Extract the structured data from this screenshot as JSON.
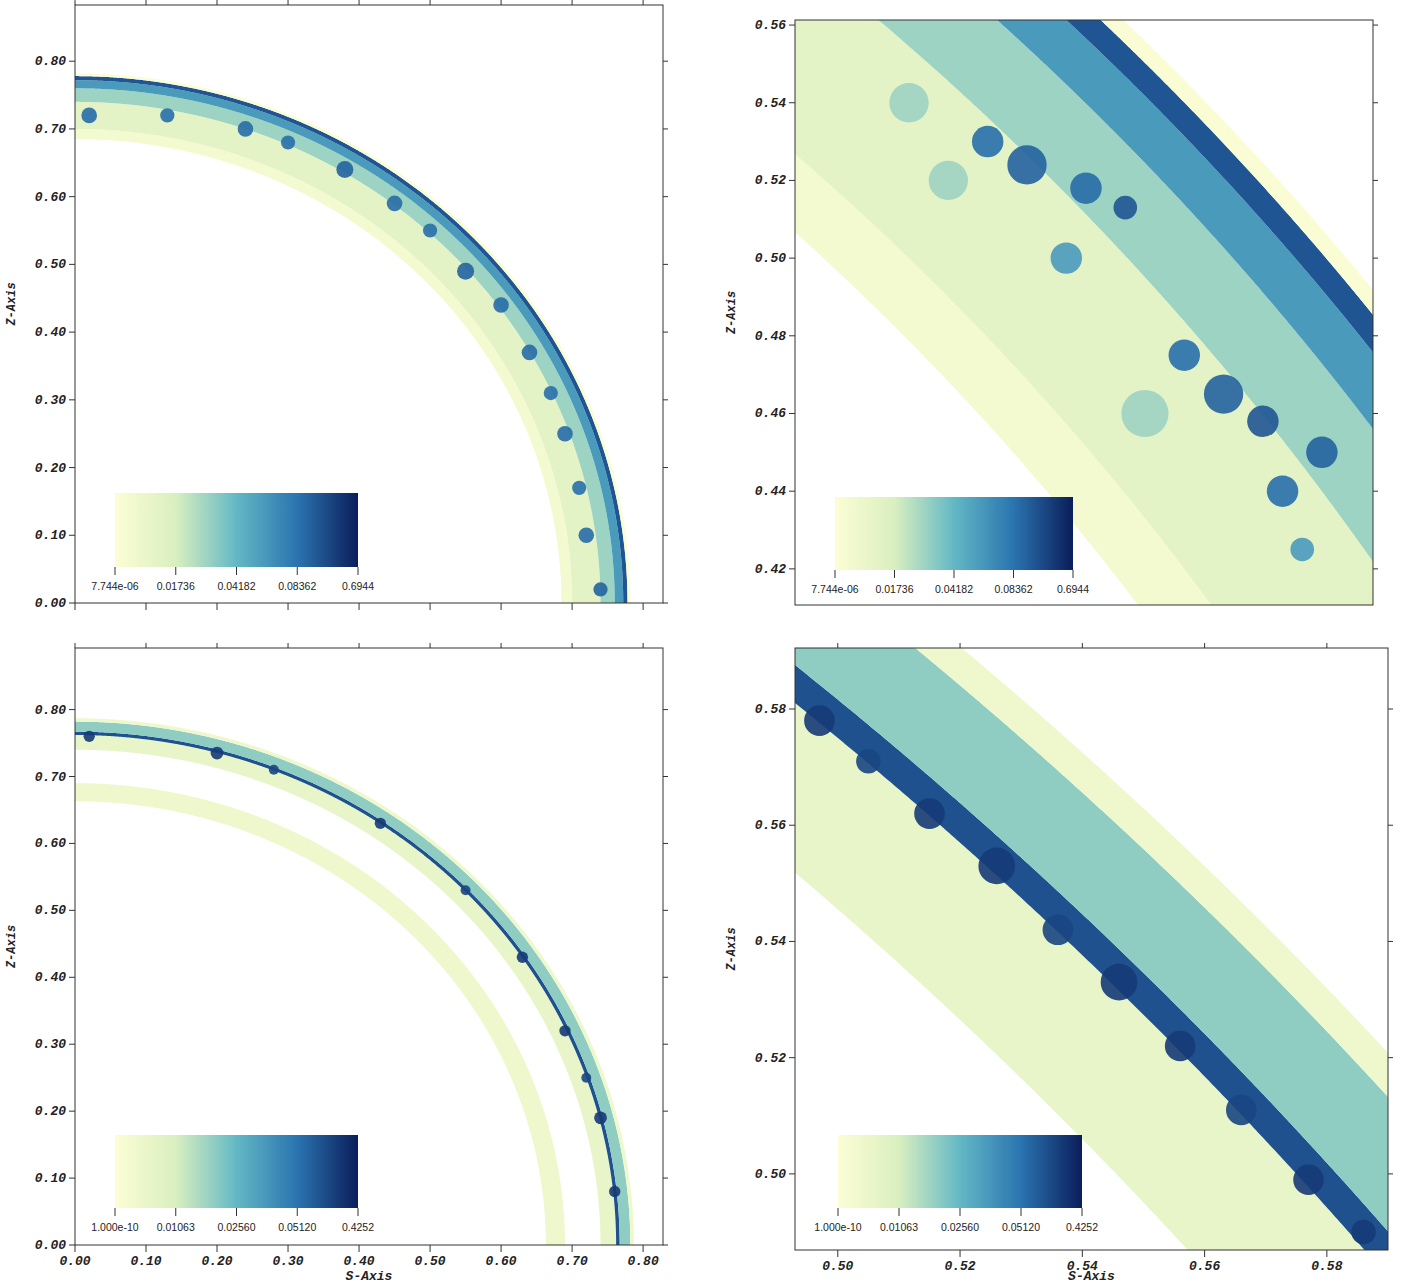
{
  "chart_data": [
    {
      "type": "heatmap",
      "xlim": [
        0,
        0.828
      ],
      "ylim": [
        0,
        0.883
      ],
      "xticks": [
        0,
        0.1,
        0.2,
        0.3,
        0.4,
        0.5,
        0.6,
        0.7,
        0.8
      ],
      "yticks": [
        {
          "value": 0,
          "label": "0.00"
        },
        {
          "value": 0.1,
          "label": "0.10"
        },
        {
          "value": 0.2,
          "label": "0.20"
        },
        {
          "value": 0.3,
          "label": "0.30"
        },
        {
          "value": 0.4,
          "label": "0.40"
        },
        {
          "value": 0.5,
          "label": "0.50"
        },
        {
          "value": 0.6,
          "label": "0.60"
        },
        {
          "value": 0.7,
          "label": "0.70"
        },
        {
          "value": 0.8,
          "label": "0.80"
        }
      ],
      "ylabel": "Z-Axis",
      "tick_labels": "y",
      "colorbar": {
        "range": [
          7.744e-06,
          0.6944
        ],
        "ticks": [
          {
            "value": 7.744e-06,
            "label": "7.744e-06"
          },
          0.01736,
          0.04182,
          0.08362,
          0.6944
        ]
      },
      "rings": [
        {
          "r_inner": 0.685,
          "r_outer": 0.7,
          "value": 0.004
        },
        {
          "r_inner": 0.7,
          "r_outer": 0.74,
          "value": 0.012
        },
        {
          "r_inner": 0.74,
          "r_outer": 0.76,
          "value": 0.03
        },
        {
          "r_inner": 0.76,
          "r_outer": 0.772,
          "value": 0.06
        },
        {
          "r_inner": 0.772,
          "r_outer": 0.778,
          "value": 0.3
        },
        {
          "r_inner": 0.778,
          "r_outer": 0.782,
          "value": 0.001
        }
      ],
      "clumps": [
        {
          "s": 0.02,
          "z": 0.72,
          "r": 0.011,
          "value": 0.15
        },
        {
          "s": 0.13,
          "z": 0.72,
          "r": 0.01,
          "value": 0.12
        },
        {
          "s": 0.24,
          "z": 0.7,
          "r": 0.011,
          "value": 0.15
        },
        {
          "s": 0.3,
          "z": 0.68,
          "r": 0.01,
          "value": 0.12
        },
        {
          "s": 0.38,
          "z": 0.64,
          "r": 0.012,
          "value": 0.2
        },
        {
          "s": 0.45,
          "z": 0.59,
          "r": 0.011,
          "value": 0.15
        },
        {
          "s": 0.5,
          "z": 0.55,
          "r": 0.01,
          "value": 0.12
        },
        {
          "s": 0.55,
          "z": 0.49,
          "r": 0.012,
          "value": 0.2
        },
        {
          "s": 0.6,
          "z": 0.44,
          "r": 0.011,
          "value": 0.15
        },
        {
          "s": 0.64,
          "z": 0.37,
          "r": 0.011,
          "value": 0.15
        },
        {
          "s": 0.67,
          "z": 0.31,
          "r": 0.01,
          "value": 0.12
        },
        {
          "s": 0.69,
          "z": 0.25,
          "r": 0.011,
          "value": 0.15
        },
        {
          "s": 0.71,
          "z": 0.17,
          "r": 0.01,
          "value": 0.12
        },
        {
          "s": 0.72,
          "z": 0.1,
          "r": 0.011,
          "value": 0.15
        },
        {
          "s": 0.74,
          "z": 0.02,
          "r": 0.01,
          "value": 0.2
        }
      ]
    },
    {
      "type": "heatmap",
      "xlim": [
        0.461,
        0.608
      ],
      "ylim": [
        0.4107,
        0.5613
      ],
      "yticks": [
        0.42,
        0.44,
        0.46,
        0.48,
        {
          "value": 0.5,
          "label": "0.50"
        },
        0.52,
        0.54,
        0.56
      ],
      "ylabel": "Z-Axis",
      "tick_labels": "y",
      "colorbar": {
        "range": [
          7.744e-06,
          0.6944
        ],
        "ticks": [
          {
            "value": 7.744e-06,
            "label": "7.744e-06"
          },
          0.01736,
          0.04182,
          0.08362,
          0.6944
        ]
      },
      "rings": [
        {
          "r_inner": 0.685,
          "r_outer": 0.7,
          "value": 0.004
        },
        {
          "r_inner": 0.7,
          "r_outer": 0.74,
          "value": 0.012
        },
        {
          "r_inner": 0.74,
          "r_outer": 0.76,
          "value": 0.03
        },
        {
          "r_inner": 0.76,
          "r_outer": 0.772,
          "value": 0.06
        },
        {
          "r_inner": 0.772,
          "r_outer": 0.778,
          "value": 0.3
        },
        {
          "r_inner": 0.778,
          "r_outer": 0.782,
          "value": 0.001
        }
      ],
      "clumps": [
        {
          "s": 0.49,
          "z": 0.54,
          "r": 0.005,
          "value": 0.03
        },
        {
          "s": 0.51,
          "z": 0.53,
          "r": 0.004,
          "value": 0.12
        },
        {
          "s": 0.52,
          "z": 0.524,
          "r": 0.005,
          "value": 0.2
        },
        {
          "s": 0.535,
          "z": 0.518,
          "r": 0.004,
          "value": 0.15
        },
        {
          "s": 0.545,
          "z": 0.513,
          "r": 0.003,
          "value": 0.3
        },
        {
          "s": 0.5,
          "z": 0.52,
          "r": 0.005,
          "value": 0.03
        },
        {
          "s": 0.53,
          "z": 0.5,
          "r": 0.004,
          "value": 0.06
        },
        {
          "s": 0.56,
          "z": 0.475,
          "r": 0.004,
          "value": 0.12
        },
        {
          "s": 0.57,
          "z": 0.465,
          "r": 0.005,
          "value": 0.2
        },
        {
          "s": 0.58,
          "z": 0.458,
          "r": 0.004,
          "value": 0.3
        },
        {
          "s": 0.595,
          "z": 0.45,
          "r": 0.004,
          "value": 0.2
        },
        {
          "s": 0.585,
          "z": 0.44,
          "r": 0.004,
          "value": 0.12
        },
        {
          "s": 0.55,
          "z": 0.46,
          "r": 0.006,
          "value": 0.03
        },
        {
          "s": 0.59,
          "z": 0.425,
          "r": 0.003,
          "value": 0.06
        }
      ]
    },
    {
      "type": "heatmap",
      "xlim": [
        0,
        0.828
      ],
      "ylim": [
        0,
        0.892
      ],
      "xticks": [
        {
          "value": 0,
          "label": "0.00"
        },
        {
          "value": 0.1,
          "label": "0.10"
        },
        {
          "value": 0.2,
          "label": "0.20"
        },
        {
          "value": 0.3,
          "label": "0.30"
        },
        {
          "value": 0.4,
          "label": "0.40"
        },
        {
          "value": 0.5,
          "label": "0.50"
        },
        {
          "value": 0.6,
          "label": "0.60"
        },
        {
          "value": 0.7,
          "label": "0.70"
        },
        {
          "value": 0.8,
          "label": "0.80"
        }
      ],
      "yticks": [
        {
          "value": 0,
          "label": "0.00"
        },
        {
          "value": 0.1,
          "label": "0.10"
        },
        {
          "value": 0.2,
          "label": "0.20"
        },
        {
          "value": 0.3,
          "label": "0.30"
        },
        {
          "value": 0.4,
          "label": "0.40"
        },
        {
          "value": 0.5,
          "label": "0.50"
        },
        {
          "value": 0.6,
          "label": "0.60"
        },
        {
          "value": 0.7,
          "label": "0.70"
        },
        {
          "value": 0.8,
          "label": "0.80"
        }
      ],
      "xlabel": "S-Axis",
      "ylabel": "Z-Axis",
      "colorbar": {
        "range": [
          1e-10,
          0.4252
        ],
        "ticks": [
          {
            "value": 1e-10,
            "label": "1.000e-10"
          },
          0.01063,
          {
            "value": 0.0256,
            "label": "0.02560"
          },
          {
            "value": 0.0512,
            "label": "0.05120"
          },
          0.4252
        ]
      },
      "rings": [
        {
          "r_inner": 0.663,
          "r_outer": 0.69,
          "value": 0.004
        },
        {
          "r_inner": 0.74,
          "r_outer": 0.762,
          "value": 0.006
        },
        {
          "r_inner": 0.762,
          "r_outer": 0.767,
          "value": 0.2
        },
        {
          "r_inner": 0.767,
          "r_outer": 0.782,
          "value": 0.02
        },
        {
          "r_inner": 0.782,
          "r_outer": 0.787,
          "value": 0.004
        }
      ],
      "clumps": [
        {
          "s": 0.02,
          "z": 0.76,
          "r": 0.008,
          "value": 0.3
        },
        {
          "s": 0.2,
          "z": 0.735,
          "r": 0.009,
          "value": 0.3
        },
        {
          "s": 0.28,
          "z": 0.71,
          "r": 0.007,
          "value": 0.25
        },
        {
          "s": 0.43,
          "z": 0.63,
          "r": 0.008,
          "value": 0.3
        },
        {
          "s": 0.55,
          "z": 0.53,
          "r": 0.007,
          "value": 0.25
        },
        {
          "s": 0.63,
          "z": 0.43,
          "r": 0.008,
          "value": 0.3
        },
        {
          "s": 0.69,
          "z": 0.32,
          "r": 0.008,
          "value": 0.3
        },
        {
          "s": 0.72,
          "z": 0.25,
          "r": 0.007,
          "value": 0.25
        },
        {
          "s": 0.74,
          "z": 0.19,
          "r": 0.009,
          "value": 0.3
        },
        {
          "s": 0.76,
          "z": 0.08,
          "r": 0.008,
          "value": 0.3
        }
      ]
    },
    {
      "type": "heatmap",
      "xlim": [
        0.493,
        0.59
      ],
      "ylim": [
        0.4869,
        0.5905
      ],
      "xticks": [
        {
          "value": 0.5,
          "label": "0.50"
        },
        0.52,
        0.54,
        0.56,
        0.58
      ],
      "yticks": [
        {
          "value": 0.5,
          "label": "0.50"
        },
        0.52,
        0.54,
        0.56,
        0.58
      ],
      "xlabel": "S-Axis",
      "ylabel": "Z-Axis",
      "colorbar": {
        "range": [
          1e-10,
          0.4252
        ],
        "ticks": [
          {
            "value": 1e-10,
            "label": "1.000e-10"
          },
          0.01063,
          {
            "value": 0.0256,
            "label": "0.02560"
          },
          {
            "value": 0.0512,
            "label": "0.05120"
          },
          0.4252
        ]
      },
      "rings": [
        {
          "r_inner": 0.663,
          "r_outer": 0.69,
          "value": 0.004
        },
        {
          "r_inner": 0.74,
          "r_outer": 0.762,
          "value": 0.006
        },
        {
          "r_inner": 0.762,
          "r_outer": 0.767,
          "value": 0.2
        },
        {
          "r_inner": 0.767,
          "r_outer": 0.782,
          "value": 0.02
        },
        {
          "r_inner": 0.782,
          "r_outer": 0.787,
          "value": 0.004
        }
      ],
      "clumps": [
        {
          "s": 0.497,
          "z": 0.578,
          "r": 0.0025,
          "value": 0.3
        },
        {
          "s": 0.505,
          "z": 0.571,
          "r": 0.002,
          "value": 0.25
        },
        {
          "s": 0.515,
          "z": 0.562,
          "r": 0.0025,
          "value": 0.3
        },
        {
          "s": 0.526,
          "z": 0.553,
          "r": 0.003,
          "value": 0.3
        },
        {
          "s": 0.536,
          "z": 0.542,
          "r": 0.0025,
          "value": 0.25
        },
        {
          "s": 0.546,
          "z": 0.533,
          "r": 0.003,
          "value": 0.3
        },
        {
          "s": 0.556,
          "z": 0.522,
          "r": 0.0025,
          "value": 0.3
        },
        {
          "s": 0.566,
          "z": 0.511,
          "r": 0.0025,
          "value": 0.25
        },
        {
          "s": 0.577,
          "z": 0.499,
          "r": 0.0025,
          "value": 0.3
        },
        {
          "s": 0.586,
          "z": 0.49,
          "r": 0.002,
          "value": 0.3
        }
      ]
    }
  ]
}
